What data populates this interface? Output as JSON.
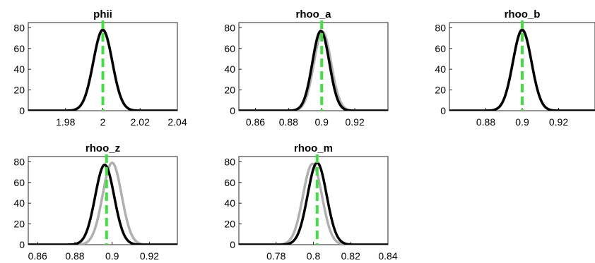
{
  "chart_data": [
    {
      "type": "line",
      "title": "phii",
      "xlim": [
        1.96,
        2.04
      ],
      "ylim": [
        0,
        85
      ],
      "xticks": [
        1.98,
        2,
        2.02,
        2.04
      ],
      "xtick_labels": [
        "1.98",
        "2",
        "2.02",
        "2.04"
      ],
      "yticks": [
        0,
        20,
        40,
        60,
        80
      ],
      "ytick_labels": [
        "0",
        "20",
        "40",
        "60",
        "80"
      ],
      "reference_line": {
        "x": 2.0,
        "color": "#44dd44",
        "style": "dashed"
      },
      "series": [
        {
          "role": "prior",
          "color": "#b0b0b0",
          "mean": 2.0,
          "std": 0.0051,
          "peak": 77
        },
        {
          "role": "posterior",
          "color": "#000000",
          "mean": 2.0,
          "std": 0.0051,
          "peak": 78
        }
      ]
    },
    {
      "type": "line",
      "title": "rhoo_a",
      "xlim": [
        0.85,
        0.94
      ],
      "ylim": [
        0,
        85
      ],
      "xticks": [
        0.86,
        0.88,
        0.9,
        0.92
      ],
      "xtick_labels": [
        "0.86",
        "0.88",
        "0.9",
        "0.92"
      ],
      "yticks": [
        0,
        20,
        40,
        60,
        80
      ],
      "ytick_labels": [
        "0",
        "20",
        "40",
        "60",
        "80"
      ],
      "reference_line": {
        "x": 0.9,
        "color": "#44dd44",
        "style": "dashed"
      },
      "series": [
        {
          "role": "prior",
          "color": "#b0b0b0",
          "mean": 0.9005,
          "std": 0.0052,
          "peak": 76
        },
        {
          "role": "posterior",
          "color": "#000000",
          "mean": 0.8995,
          "std": 0.0051,
          "peak": 77
        }
      ]
    },
    {
      "type": "line",
      "title": "rhoo_b",
      "xlim": [
        0.86,
        0.94
      ],
      "ylim": [
        0,
        85
      ],
      "xticks": [
        0.88,
        0.9,
        0.92
      ],
      "xtick_labels": [
        "0.88",
        "0.9",
        "0.92"
      ],
      "yticks": [
        0,
        20,
        40,
        60,
        80
      ],
      "ytick_labels": [
        "0",
        "20",
        "40",
        "60",
        "80"
      ],
      "reference_line": {
        "x": 0.9,
        "color": "#44dd44",
        "style": "dashed"
      },
      "series": [
        {
          "role": "prior",
          "color": "#b0b0b0",
          "mean": 0.9,
          "std": 0.0051,
          "peak": 77
        },
        {
          "role": "posterior",
          "color": "#000000",
          "mean": 0.9,
          "std": 0.0051,
          "peak": 78
        }
      ]
    },
    {
      "type": "line",
      "title": "rhoo_z",
      "xlim": [
        0.855,
        0.935
      ],
      "ylim": [
        0,
        85
      ],
      "xticks": [
        0.86,
        0.88,
        0.9,
        0.92
      ],
      "xtick_labels": [
        "0.86",
        "0.88",
        "0.9",
        "0.92"
      ],
      "yticks": [
        0,
        20,
        40,
        60,
        80
      ],
      "ytick_labels": [
        "0",
        "20",
        "40",
        "60",
        "80"
      ],
      "reference_line": {
        "x": 0.897,
        "color": "#44dd44",
        "style": "dashed"
      },
      "series": [
        {
          "role": "prior",
          "color": "#b0b0b0",
          "mean": 0.9,
          "std": 0.0051,
          "peak": 79
        },
        {
          "role": "posterior",
          "color": "#000000",
          "mean": 0.896,
          "std": 0.0051,
          "peak": 77
        }
      ]
    },
    {
      "type": "line",
      "title": "rhoo_m",
      "xlim": [
        0.76,
        0.84
      ],
      "ylim": [
        0,
        85
      ],
      "xticks": [
        0.78,
        0.8,
        0.82,
        0.84
      ],
      "xtick_labels": [
        "0.78",
        "0.8",
        "0.82",
        "0.84"
      ],
      "yticks": [
        0,
        20,
        40,
        60,
        80
      ],
      "ytick_labels": [
        "0",
        "20",
        "40",
        "60",
        "80"
      ],
      "reference_line": {
        "x": 0.802,
        "color": "#44dd44",
        "style": "dashed"
      },
      "series": [
        {
          "role": "prior",
          "color": "#b0b0b0",
          "mean": 0.7995,
          "std": 0.0051,
          "peak": 78
        },
        {
          "role": "posterior",
          "color": "#000000",
          "mean": 0.802,
          "std": 0.0051,
          "peak": 79
        }
      ]
    }
  ]
}
